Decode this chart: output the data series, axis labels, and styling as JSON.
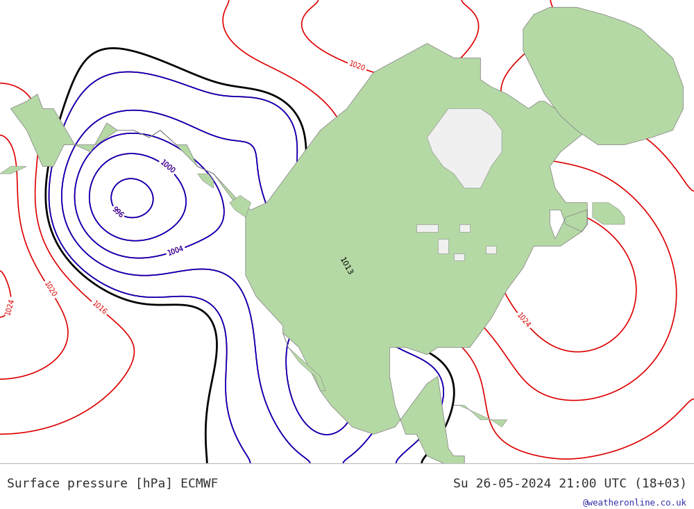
{
  "title_left": "Surface pressure [hPa] ECMWF",
  "title_right": "Su 26-05-2024 21:00 UTC (18+03)",
  "watermark": "@weatheronline.co.uk",
  "bg_color": "#ffffff",
  "map_bg_color": "#f0f0f0",
  "land_color": "#b5d9a5",
  "border_color": "#888888",
  "isobar_red": "#dd0000",
  "isobar_blue": "#0000cc",
  "isobar_black": "#000000",
  "text_color": "#303030",
  "watermark_color": "#3333aa",
  "bottom_bar_color": "#e0e0e0",
  "figsize": [
    10.0,
    7.33
  ],
  "dpi": 100
}
